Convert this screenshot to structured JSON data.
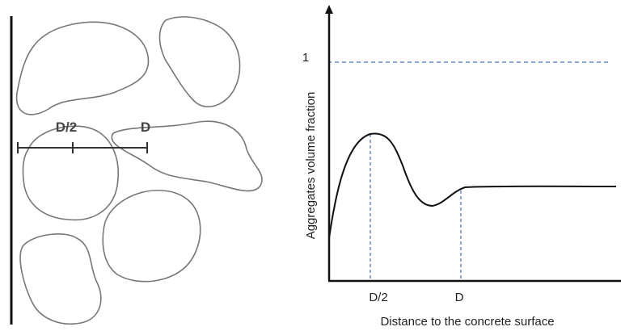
{
  "sketch": {
    "labels": [
      "D/2",
      "D"
    ]
  },
  "plot": {
    "y_axis_label": "Aggregates volume fraction",
    "y_tick": "1",
    "x_ticks": [
      "D/2",
      "D"
    ],
    "x_axis_label": "Distance to the concrete surface"
  }
}
